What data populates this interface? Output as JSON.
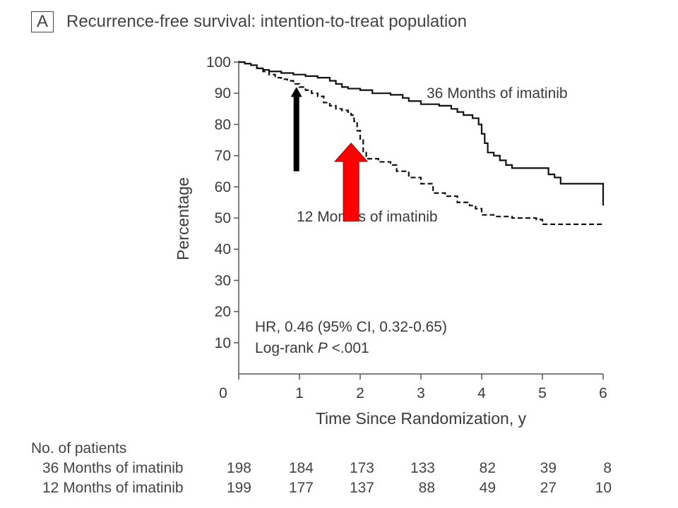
{
  "panel_label": "A",
  "title": "Recurrence-free survival: intention-to-treat population",
  "chart_data": {
    "type": "line",
    "title": "Recurrence-free survival: intention-to-treat population",
    "xlabel": "Time Since Randomization, y",
    "ylabel": "Percentage",
    "xlim": [
      0,
      6
    ],
    "ylim": [
      0,
      100
    ],
    "xticks": [
      0,
      1,
      2,
      3,
      4,
      5,
      6
    ],
    "yticks": [
      10,
      20,
      30,
      40,
      50,
      60,
      70,
      80,
      90,
      100
    ],
    "step": true,
    "series": [
      {
        "name": "36 Months of imatinib",
        "style": "solid",
        "color": "#111111",
        "x": [
          0,
          0.05,
          0.1,
          0.2,
          0.3,
          0.4,
          0.5,
          0.7,
          0.9,
          1.1,
          1.3,
          1.5,
          1.6,
          1.7,
          1.8,
          2.0,
          2.2,
          2.5,
          2.7,
          2.8,
          3.0,
          3.2,
          3.3,
          3.5,
          3.6,
          3.7,
          3.85,
          3.95,
          4.0,
          4.05,
          4.1,
          4.2,
          4.3,
          4.4,
          4.5,
          4.6,
          4.7,
          5.0,
          5.1,
          5.2,
          5.3,
          5.5,
          5.8,
          6.0,
          6.0
        ],
        "y": [
          100,
          100,
          99.5,
          99,
          98,
          97.5,
          97,
          96.5,
          96,
          95.5,
          95,
          94,
          93,
          92,
          91.5,
          91,
          90,
          89.5,
          88.5,
          87.5,
          86.5,
          86.5,
          86,
          85,
          84,
          83,
          82,
          80,
          77,
          74,
          71,
          70,
          68.5,
          67,
          66,
          66,
          66,
          66,
          64,
          63,
          61,
          61,
          61,
          61,
          54
        ]
      },
      {
        "name": "12 Months of imatinib",
        "style": "dashed",
        "color": "#111111",
        "x": [
          0,
          0.1,
          0.2,
          0.3,
          0.4,
          0.5,
          0.6,
          0.7,
          0.8,
          0.9,
          1.0,
          1.1,
          1.2,
          1.3,
          1.4,
          1.5,
          1.6,
          1.7,
          1.8,
          1.85,
          1.9,
          1.95,
          2.0,
          2.05,
          2.1,
          2.3,
          2.5,
          2.6,
          2.8,
          3.0,
          3.2,
          3.4,
          3.6,
          3.8,
          3.9,
          4.0,
          4.2,
          4.5,
          4.9,
          5.0,
          6.0
        ],
        "y": [
          100,
          99.5,
          99,
          98,
          97,
          96,
          95,
          94.5,
          94,
          93,
          92,
          91,
          90,
          89,
          87,
          86,
          85,
          84.5,
          84,
          83,
          81,
          78,
          75,
          71,
          69,
          68,
          67,
          65,
          63,
          61,
          58,
          57,
          55,
          54,
          53,
          51,
          50.5,
          50,
          49.5,
          48,
          48
        ]
      }
    ],
    "series_labels": [
      "36 Months of imatinib",
      "12 Months of imatinib"
    ],
    "annotations": [
      {
        "text": "HR, 0.46 (95% CI, 0.32-0.65)"
      },
      {
        "text_prefix": "Log-rank ",
        "text_italic": "P",
        "text_suffix": " <.001"
      }
    ],
    "arrows": [
      {
        "color": "#000000",
        "x": 0.95,
        "y_from": 65,
        "y_to": 92
      },
      {
        "color": "#ff0000",
        "x": 1.85,
        "y_from": 49,
        "y_to": 74
      }
    ],
    "legend": "none"
  },
  "risk_table": {
    "heading": "No. of patients",
    "rows": [
      {
        "label": "36 Months of imatinib",
        "values": [
          "198",
          "184",
          "173",
          "133",
          "82",
          "39",
          "8"
        ]
      },
      {
        "label": "12 Months of imatinib",
        "values": [
          "199",
          "177",
          "137",
          "88",
          "49",
          "27",
          "10"
        ]
      }
    ]
  }
}
